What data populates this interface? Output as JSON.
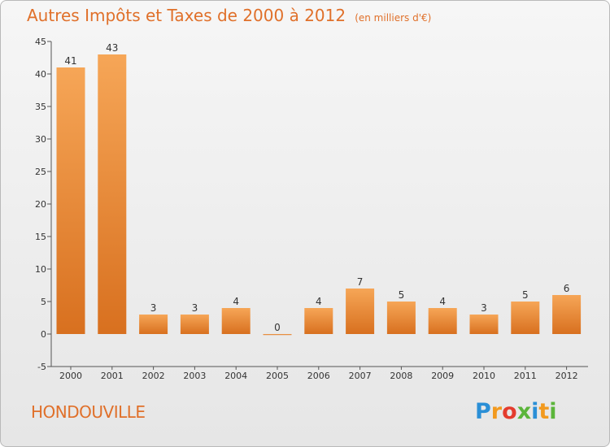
{
  "title": "Autres Impôts et Taxes de 2000 à 2012",
  "subtitle": "(en milliers d'€)",
  "commune": "HONDOUVILLE",
  "brand": {
    "text": "Proxiti",
    "letters": [
      {
        "ch": "P",
        "color": "#2a8fd6"
      },
      {
        "ch": "r",
        "color": "#f29a1f"
      },
      {
        "ch": "o",
        "color": "#e43c2e"
      },
      {
        "ch": "x",
        "color": "#5bb53a"
      },
      {
        "ch": "i",
        "color": "#2a8fd6"
      },
      {
        "ch": "t",
        "color": "#f29a1f"
      },
      {
        "ch": "i",
        "color": "#5bb53a"
      }
    ]
  },
  "colors": {
    "accent": "#e0702a",
    "bar_light": "#f6a657",
    "bar_dark": "#d8701f"
  },
  "chart_data": {
    "type": "bar",
    "title": "Autres Impôts et Taxes de 2000 à 2012",
    "subtitle": "(en milliers d'€)",
    "categories": [
      "2000",
      "2001",
      "2002",
      "2003",
      "2004",
      "2005",
      "2006",
      "2007",
      "2008",
      "2009",
      "2010",
      "2011",
      "2012"
    ],
    "values": [
      41,
      43,
      3,
      3,
      4,
      0,
      4,
      7,
      5,
      4,
      3,
      5,
      6
    ],
    "ylim": [
      -5,
      45
    ],
    "yticks": [
      -5,
      0,
      5,
      10,
      15,
      20,
      25,
      30,
      35,
      40,
      45
    ],
    "grid": false,
    "legend": "none"
  }
}
